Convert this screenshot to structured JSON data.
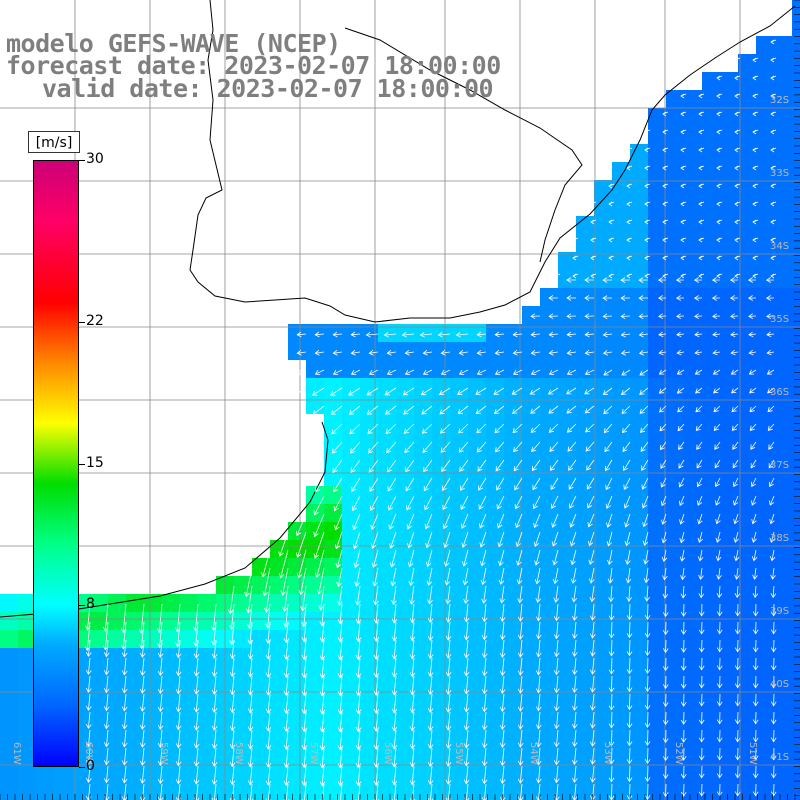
{
  "title": {
    "model": "modelo GEFS-WAVE (NCEP)",
    "forecast": "forecast date: 2023-02-07 18:00:00",
    "valid": "valid date: 2023-02-07 18:00:00"
  },
  "colorbar": {
    "unit": "[m/s]",
    "min": 0,
    "max": 30,
    "ticks": [
      {
        "value": 30,
        "label": "30"
      },
      {
        "value": 22,
        "label": "22"
      },
      {
        "value": 15,
        "label": "15"
      },
      {
        "value": 8,
        "label": "8"
      },
      {
        "value": 0,
        "label": "0"
      }
    ],
    "stops": [
      {
        "value": 0,
        "color": "#0000ff"
      },
      {
        "value": 3,
        "color": "#0066ff"
      },
      {
        "value": 6,
        "color": "#00aaff"
      },
      {
        "value": 8,
        "color": "#00ffff"
      },
      {
        "value": 11,
        "color": "#00ff88"
      },
      {
        "value": 14,
        "color": "#00dd00"
      },
      {
        "value": 17,
        "color": "#ffff00"
      },
      {
        "value": 20,
        "color": "#ff8800"
      },
      {
        "value": 23,
        "color": "#ff0000"
      },
      {
        "value": 27,
        "color": "#ff0066"
      },
      {
        "value": 30,
        "color": "#cc0077"
      }
    ]
  },
  "map": {
    "lat_labels": [
      "32S",
      "33S",
      "34S",
      "35S",
      "36S",
      "37S",
      "38S",
      "39S",
      "40S",
      "41S"
    ],
    "lon_labels": [
      "61W",
      "60W",
      "59W",
      "58W",
      "57W",
      "56W",
      "55W",
      "54W",
      "53W",
      "52W",
      "51W"
    ],
    "land_color": "#ffffff",
    "grid_color": "#888888",
    "coast_color": "#000000",
    "arrow_color": "#ffffff"
  }
}
